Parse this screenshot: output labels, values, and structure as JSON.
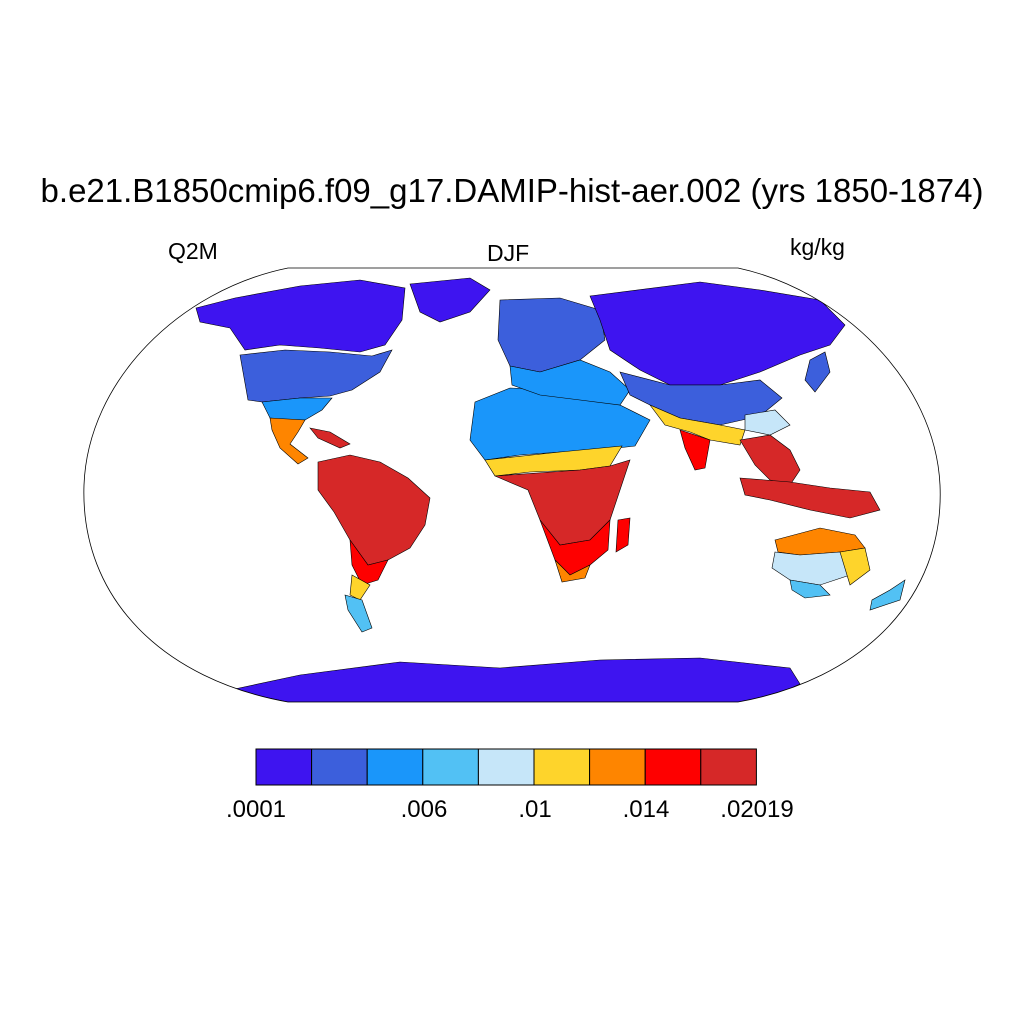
{
  "title": "b.e21.B1850cmip6.f09_g17.DAMIP-hist-aer.002 (yrs 1850-1874)",
  "left_label": "Q2M",
  "center_label": "DJF",
  "right_label": "kg/kg",
  "colorbar": {
    "colors": [
      "#3e14f0",
      "#3c5fdc",
      "#1a96fa",
      "#52c1f4",
      "#c6e6f9",
      "#fed42b",
      "#fe8500",
      "#fe0000",
      "#d62828"
    ],
    "tick_labels": [
      ".0001",
      ".006",
      ".01",
      ".014",
      ".02019"
    ]
  },
  "map": {
    "projection": "Robinson",
    "variable": "Q2M",
    "season": "DJF",
    "units": "kg/kg"
  }
}
